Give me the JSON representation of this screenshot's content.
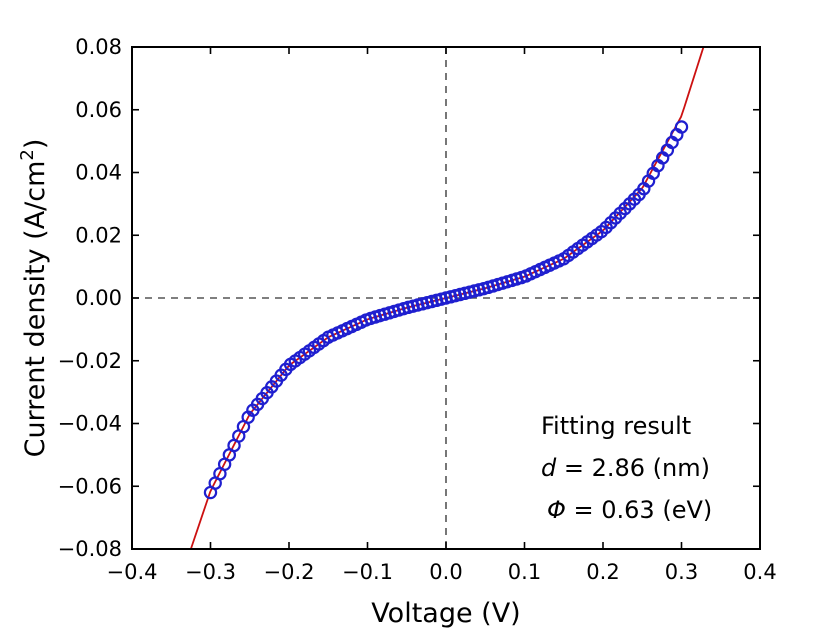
{
  "chart_data": {
    "type": "scatter",
    "title": "",
    "xlabel": "Voltage (V)",
    "ylabel": "Current density (A/cm²)",
    "ylabel_parts": [
      "Current density (A/cm",
      "2",
      ")"
    ],
    "xlim": [
      -0.4,
      0.4
    ],
    "ylim": [
      -0.08,
      0.08
    ],
    "x_ticks": [
      "−0.4",
      "−0.3",
      "−0.2",
      "−0.1",
      "0.0",
      "0.1",
      "0.2",
      "0.3",
      "0.4"
    ],
    "x_tick_values": [
      -0.4,
      -0.3,
      -0.2,
      -0.1,
      0.0,
      0.1,
      0.2,
      0.3,
      0.4
    ],
    "y_ticks": [
      "0.08",
      "0.06",
      "0.04",
      "0.02",
      "0.00",
      "−0.02",
      "−0.04",
      "−0.06",
      "−0.08"
    ],
    "y_tick_values": [
      0.08,
      0.06,
      0.04,
      0.02,
      0.0,
      -0.02,
      -0.04,
      -0.06,
      -0.08
    ],
    "grid": false,
    "zero_lines": "dashed",
    "measured_series": {
      "marker": "open-circle",
      "color": "#1f1fcf",
      "x_start": -0.3,
      "x_end": 0.3,
      "count": 101,
      "points": [
        [
          -0.3,
          -0.062
        ],
        [
          -0.25,
          -0.037
        ],
        [
          -0.2,
          -0.0215
        ],
        [
          -0.15,
          -0.0125
        ],
        [
          -0.1,
          -0.0068
        ],
        [
          -0.05,
          -0.0031
        ],
        [
          0.0,
          0.0
        ],
        [
          0.05,
          0.0031
        ],
        [
          0.1,
          0.0068
        ],
        [
          0.15,
          0.0125
        ],
        [
          0.2,
          0.0215
        ],
        [
          0.25,
          0.034
        ],
        [
          0.3,
          0.0545
        ]
      ]
    },
    "fit_series": {
      "color": "#cc1111",
      "points": [
        [
          -0.325,
          -0.08
        ],
        [
          -0.3,
          -0.0615
        ],
        [
          -0.25,
          -0.037
        ],
        [
          -0.2,
          -0.0215
        ],
        [
          -0.15,
          -0.0125
        ],
        [
          -0.1,
          -0.0068
        ],
        [
          -0.05,
          -0.0031
        ],
        [
          0.0,
          0.0
        ],
        [
          0.05,
          0.0031
        ],
        [
          0.1,
          0.0068
        ],
        [
          0.15,
          0.0125
        ],
        [
          0.2,
          0.0215
        ],
        [
          0.25,
          0.035
        ],
        [
          0.3,
          0.058
        ],
        [
          0.328,
          0.08
        ]
      ]
    },
    "annotations": {
      "heading": "Fitting result",
      "d_symbol": "d",
      "d_value": " = 2.86 (nm)",
      "phi_symbol": "Φ",
      "phi_value": " = 0.63 (eV)"
    }
  }
}
